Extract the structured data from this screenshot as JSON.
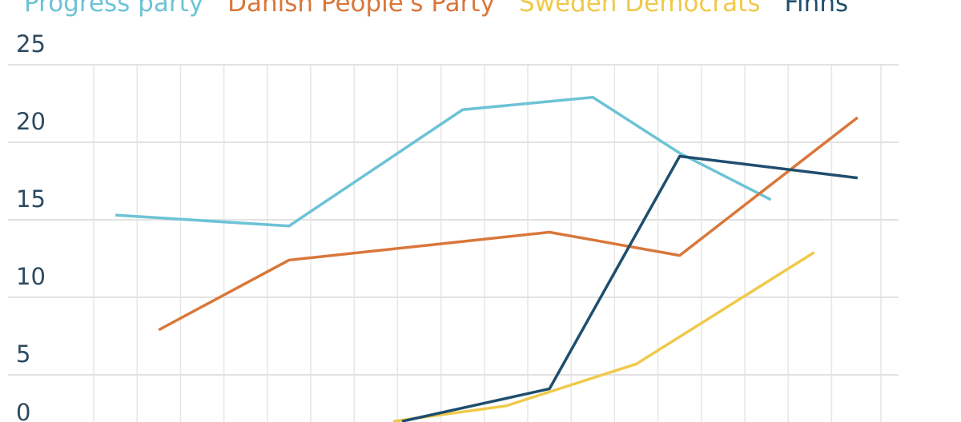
{
  "chart_data": {
    "type": "line",
    "title": "",
    "xlabel": "",
    "ylabel": "",
    "ylim": [
      0,
      25
    ],
    "yticks": [
      "0",
      "5",
      "10",
      "15",
      "20",
      "25"
    ],
    "grid": true,
    "legend_placement": "top",
    "x_units": "grid columns (axis labels not visible)",
    "series": [
      {
        "name": "Progress party",
        "color": "#6cc3d5",
        "points": [
          [
            0.5,
            15.3
          ],
          [
            4.5,
            14.6
          ],
          [
            8.5,
            22.1
          ],
          [
            11.5,
            22.9
          ],
          [
            13.5,
            19.3
          ],
          [
            15.6,
            16.3
          ]
        ]
      },
      {
        "name": "Danish People's Party",
        "color": "#d9773a",
        "points": [
          [
            1.5,
            7.9
          ],
          [
            4.5,
            12.4
          ],
          [
            10.5,
            14.2
          ],
          [
            13.5,
            12.7
          ],
          [
            17.6,
            21.6
          ]
        ]
      },
      {
        "name": "Sweden Democrats",
        "color": "#f0c94a",
        "points": [
          [
            6.9,
            2.0
          ],
          [
            9.5,
            3.0
          ],
          [
            12.5,
            5.7
          ],
          [
            16.6,
            12.9
          ]
        ]
      },
      {
        "name": "Finns",
        "color": "#1f4e6e",
        "points": [
          [
            7.1,
            2.0
          ],
          [
            10.5,
            4.1
          ],
          [
            13.5,
            19.1
          ],
          [
            17.6,
            17.7
          ]
        ]
      }
    ]
  }
}
